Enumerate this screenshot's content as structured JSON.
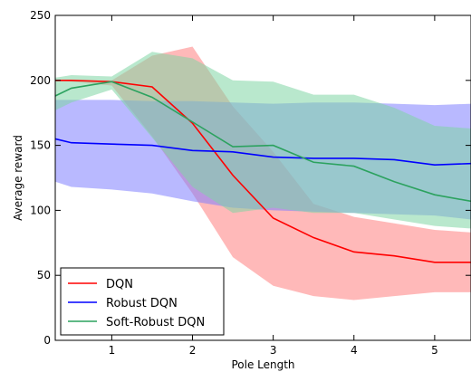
{
  "chart_data": {
    "type": "line",
    "title": "",
    "xlabel": "Pole Length",
    "ylabel": "Average reward",
    "xlim": [
      0.3,
      5.45
    ],
    "ylim": [
      0,
      250
    ],
    "xticks": [
      1,
      2,
      3,
      4,
      5
    ],
    "xtick_labels": [
      "1",
      "2",
      "3",
      "4",
      "5"
    ],
    "yticks": [
      0,
      50,
      100,
      150,
      200,
      250
    ],
    "ytick_labels": [
      "0",
      "50",
      "100",
      "150",
      "200",
      "250"
    ],
    "grid": false,
    "legend_position": "lower-left",
    "series": [
      {
        "name": "DQN",
        "color": "#ff0000",
        "band_color": "#ff8080",
        "x": [
          0.3,
          0.5,
          1.0,
          1.5,
          2.0,
          2.5,
          3.0,
          3.5,
          4.0,
          4.5,
          5.0,
          5.45
        ],
        "values": [
          200,
          200,
          199,
          195,
          167,
          127,
          94,
          79,
          68,
          65,
          60,
          60
        ],
        "upper": [
          200,
          200,
          200,
          219,
          226,
          180,
          145,
          105,
          95,
          90,
          85,
          83
        ],
        "lower": [
          200,
          199,
          196,
          157,
          113,
          64,
          42,
          34,
          31,
          34,
          37,
          37
        ]
      },
      {
        "name": "Robust DQN",
        "color": "#0000ff",
        "band_color": "#8080ff",
        "x": [
          0.3,
          0.5,
          1.0,
          1.5,
          2.0,
          2.5,
          3.0,
          3.5,
          4.0,
          4.5,
          5.0,
          5.45
        ],
        "values": [
          155,
          152,
          151,
          150,
          146,
          145,
          141,
          140,
          140,
          139,
          135,
          136
        ],
        "upper": [
          185,
          185,
          185,
          184,
          184,
          183,
          182,
          183,
          183,
          182,
          181,
          182
        ],
        "lower": [
          122,
          118,
          116,
          113,
          107,
          102,
          100,
          99,
          98,
          97,
          96,
          93
        ]
      },
      {
        "name": "Soft-Robust DQN",
        "color": "#2ca25f",
        "band_color": "#7fd6a4",
        "x": [
          0.3,
          0.5,
          1.0,
          1.5,
          2.0,
          2.5,
          3.0,
          3.5,
          4.0,
          4.5,
          5.0,
          5.45
        ],
        "values": [
          188,
          194,
          199,
          187,
          168,
          149,
          150,
          137,
          134,
          122,
          112,
          107
        ],
        "upper": [
          202,
          204,
          203,
          222,
          217,
          200,
          199,
          189,
          189,
          179,
          165,
          163
        ],
        "lower": [
          177,
          183,
          193,
          156,
          118,
          98,
          102,
          98,
          98,
          93,
          88,
          86
        ]
      }
    ]
  }
}
